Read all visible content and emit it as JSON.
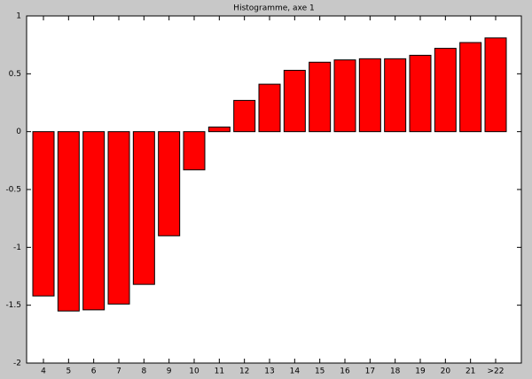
{
  "chart_data": {
    "type": "bar",
    "title": "Histogramme, axe 1",
    "categories": [
      "4",
      "5",
      "6",
      "7",
      "8",
      "9",
      "10",
      "11",
      "12",
      "13",
      "14",
      "15",
      "16",
      "17",
      "18",
      "19",
      "20",
      "21",
      ">22"
    ],
    "values": [
      -1.42,
      -1.55,
      -1.54,
      -1.49,
      -1.32,
      -0.9,
      -0.33,
      0.04,
      0.27,
      0.41,
      0.53,
      0.6,
      0.62,
      0.63,
      0.63,
      0.66,
      0.72,
      0.77,
      0.81
    ],
    "color": "#ff0000",
    "ylim": [
      -2,
      1
    ],
    "yticks": [
      -2,
      -1.5,
      -1,
      -0.5,
      0,
      0.5,
      1
    ],
    "grid": false
  }
}
